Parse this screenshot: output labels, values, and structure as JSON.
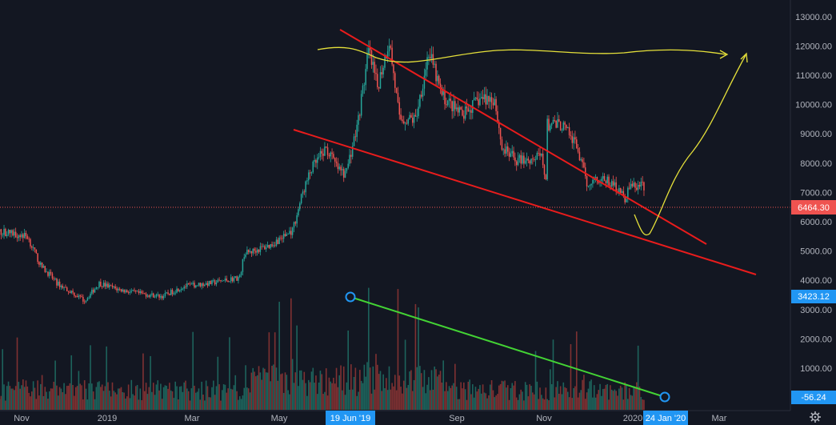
{
  "colors": {
    "background": "#131722",
    "candle_up": "#26a69a",
    "candle_down": "#ef5350",
    "volume_up": "#1f6b63",
    "volume_down": "#8c3434",
    "trendline": "#e91c1c",
    "projection": "#e5e03a",
    "volume_trend": "#43d334",
    "price_line": "#ef5350",
    "tag_blue": "#2196f3",
    "axis_text": "#b2b5be"
  },
  "icons": {
    "settings": "gear-icon"
  },
  "chart_data": {
    "type": "candlestick",
    "x_axis": {
      "labels": [
        "Nov",
        "2019",
        "Mar",
        "May",
        "Sep",
        "Nov",
        "2020",
        "Mar"
      ],
      "crosshair_label": "19 Jun '19",
      "extra_label": "24 Jan '20"
    },
    "y_axis": {
      "range": [
        0,
        13500
      ],
      "tick_labels": [
        "13000.00",
        "12000.00",
        "11000.00",
        "10000.00",
        "9000.00",
        "8000.00",
        "7000.00",
        "6000.00",
        "5000.00",
        "4000.00",
        "3000.00",
        "2000.00",
        "1000.00"
      ],
      "tick_values": [
        13000,
        12000,
        11000,
        10000,
        9000,
        8000,
        7000,
        6000,
        5000,
        4000,
        3000,
        2000,
        1000
      ]
    },
    "last_price": {
      "label": "6464.30",
      "value": 6464.3
    },
    "crosshair_value": {
      "label": "3423.12",
      "value": 3423.12
    },
    "volume_value": {
      "label": "-56.24",
      "value": -56.24
    },
    "price_path": [
      [
        "2018-10-01",
        5600
      ],
      [
        "2018-10-20",
        5650
      ],
      [
        "2018-11-05",
        5500
      ],
      [
        "2018-11-14",
        4500
      ],
      [
        "2018-11-20",
        4200
      ],
      [
        "2018-11-25",
        3900
      ],
      [
        "2018-12-05",
        3600
      ],
      [
        "2018-12-14",
        3300
      ],
      [
        "2018-12-24",
        3900
      ],
      [
        "2019-01-05",
        3700
      ],
      [
        "2019-01-20",
        3550
      ],
      [
        "2019-02-05",
        3450
      ],
      [
        "2019-02-20",
        3800
      ],
      [
        "2019-03-10",
        3900
      ],
      [
        "2019-03-30",
        4100
      ],
      [
        "2019-04-02",
        4900
      ],
      [
        "2019-04-20",
        5200
      ],
      [
        "2019-05-05",
        5700
      ],
      [
        "2019-05-12",
        7000
      ],
      [
        "2019-05-18",
        7800
      ],
      [
        "2019-05-28",
        8500
      ],
      [
        "2019-06-05",
        7800
      ],
      [
        "2019-06-10",
        7600
      ],
      [
        "2019-06-18",
        9200
      ],
      [
        "2019-06-26",
        11800
      ],
      [
        "2019-07-02",
        10600
      ],
      [
        "2019-07-10",
        12200
      ],
      [
        "2019-07-17",
        9500
      ],
      [
        "2019-07-28",
        9500
      ],
      [
        "2019-08-06",
        11800
      ],
      [
        "2019-08-15",
        10300
      ],
      [
        "2019-08-29",
        9600
      ],
      [
        "2019-09-10",
        10200
      ],
      [
        "2019-09-20",
        10200
      ],
      [
        "2019-09-25",
        8500
      ],
      [
        "2019-10-05",
        8100
      ],
      [
        "2019-10-22",
        8200
      ],
      [
        "2019-10-25",
        7500
      ],
      [
        "2019-10-26",
        9300
      ],
      [
        "2019-11-05",
        9300
      ],
      [
        "2019-11-15",
        8600
      ],
      [
        "2019-11-22",
        7300
      ],
      [
        "2019-11-28",
        7500
      ],
      [
        "2019-12-05",
        7400
      ],
      [
        "2019-12-15",
        7100
      ],
      [
        "2019-12-18",
        6600
      ],
      [
        "2019-12-20",
        7200
      ],
      [
        "2019-12-31",
        7200
      ]
    ],
    "volume_range": [
      0,
      4200
    ],
    "volume_peak_date": "2019-06-26",
    "volume_peak": 4000
  }
}
